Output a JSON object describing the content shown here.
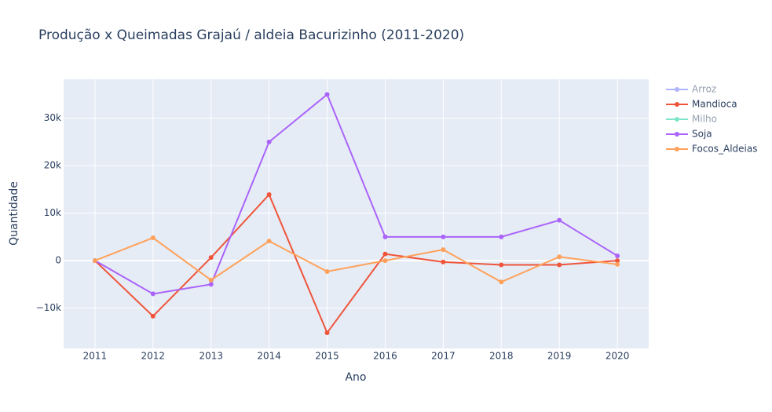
{
  "chart_data": {
    "type": "line",
    "title": "Produção x Queimadas Grajaú / aldeia Bacurizinho  (2011-2020)",
    "x_label": "Ano",
    "y_label": "Quantidade",
    "x": [
      2011,
      2012,
      2013,
      2014,
      2015,
      2016,
      2017,
      2018,
      2019,
      2020
    ],
    "series": [
      {
        "name": "Arroz",
        "color": "#636efa",
        "visible": "legendonly",
        "values": [
          null,
          null,
          null,
          null,
          null,
          null,
          null,
          null,
          null,
          null
        ]
      },
      {
        "name": "Mandioca",
        "color": "#EF553B",
        "values": [
          0,
          -11700,
          650,
          13900,
          -15200,
          1400,
          -300,
          -900,
          -900,
          0
        ]
      },
      {
        "name": "Milho",
        "color": "#00cc96",
        "visible": "legendonly",
        "values": [
          null,
          null,
          null,
          null,
          null,
          null,
          null,
          null,
          null,
          null
        ]
      },
      {
        "name": "Soja",
        "color": "#ab63fa",
        "values": [
          0,
          -7000,
          -5000,
          25000,
          35000,
          5000,
          5000,
          5000,
          8500,
          1000
        ]
      },
      {
        "name": "Focos_Aldeias",
        "color": "#FFA15A",
        "values": [
          0,
          4800,
          -4100,
          4100,
          -2300,
          0,
          2300,
          -4500,
          800,
          -800
        ]
      }
    ],
    "xlim": [
      2010.46,
      2020.54
    ],
    "xticks": [
      2011,
      2012,
      2013,
      2014,
      2015,
      2016,
      2017,
      2018,
      2019,
      2020
    ],
    "ylim": [
      -18500,
      38200
    ],
    "yticks": [
      {
        "value": -10000,
        "label": "−10k"
      },
      0,
      {
        "value": 10000,
        "label": "10k"
      },
      {
        "value": 20000,
        "label": "20k"
      },
      {
        "value": 30000,
        "label": "30k"
      }
    ],
    "grid": true,
    "legend": "right"
  }
}
